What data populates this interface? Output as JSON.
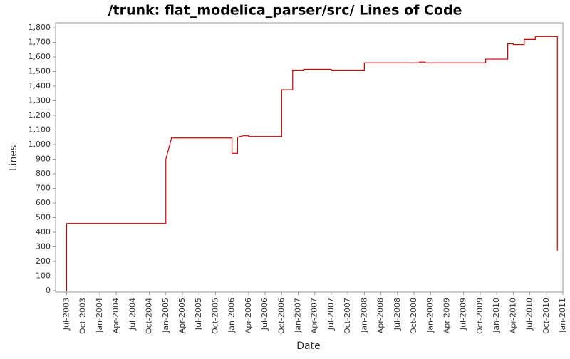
{
  "chart_data": {
    "type": "line",
    "title": "/trunk: flat_modelica_parser/src/ Lines of Code",
    "x_label": "Date",
    "y_label": "Lines",
    "x": [
      "2003-07",
      "2003-07",
      "2005-01",
      "2005-01",
      "2005-02",
      "2005-02",
      "2006-01",
      "2006-01",
      "2006-02",
      "2006-02",
      "2006-03",
      "2006-04",
      "2006-04",
      "2006-10",
      "2006-10",
      "2006-12",
      "2006-12",
      "2007-02",
      "2007-02",
      "2007-07",
      "2007-07",
      "2008-01",
      "2008-01",
      "2008-11",
      "2008-11",
      "2008-12",
      "2008-12",
      "2009-11",
      "2009-11",
      "2010-03",
      "2010-03",
      "2010-04",
      "2010-04",
      "2010-06",
      "2010-06",
      "2010-08",
      "2010-08",
      "2010-12",
      "2010-12"
    ],
    "series": [
      {
        "name": "Lines",
        "color": "#cc0000",
        "values": [
          0,
          460,
          460,
          900,
          1040,
          1045,
          1045,
          940,
          940,
          1050,
          1060,
          1060,
          1055,
          1055,
          1375,
          1375,
          1510,
          1510,
          1515,
          1515,
          1510,
          1510,
          1560,
          1560,
          1565,
          1565,
          1560,
          1560,
          1585,
          1585,
          1690,
          1690,
          1685,
          1685,
          1720,
          1720,
          1740,
          1740,
          275
        ]
      }
    ],
    "xlim": [
      "2003-05",
      "2011-01"
    ],
    "xticks": [
      {
        "value": "2003-07",
        "label": "Jul-2003"
      },
      {
        "value": "2003-10",
        "label": "Oct-2003"
      },
      {
        "value": "2004-01",
        "label": "Jan-2004"
      },
      {
        "value": "2004-04",
        "label": "Apr-2004"
      },
      {
        "value": "2004-07",
        "label": "Jul-2004"
      },
      {
        "value": "2004-10",
        "label": "Oct-2004"
      },
      {
        "value": "2005-01",
        "label": "Jan-2005"
      },
      {
        "value": "2005-04",
        "label": "Apr-2005"
      },
      {
        "value": "2005-07",
        "label": "Jul-2005"
      },
      {
        "value": "2005-10",
        "label": "Oct-2005"
      },
      {
        "value": "2006-01",
        "label": "Jan-2006"
      },
      {
        "value": "2006-04",
        "label": "Apr-2006"
      },
      {
        "value": "2006-07",
        "label": "Jul-2006"
      },
      {
        "value": "2006-10",
        "label": "Oct-2006"
      },
      {
        "value": "2007-01",
        "label": "Jan-2007"
      },
      {
        "value": "2007-04",
        "label": "Apr-2007"
      },
      {
        "value": "2007-07",
        "label": "Jul-2007"
      },
      {
        "value": "2007-10",
        "label": "Oct-2007"
      },
      {
        "value": "2008-01",
        "label": "Jan-2008"
      },
      {
        "value": "2008-04",
        "label": "Apr-2008"
      },
      {
        "value": "2008-07",
        "label": "Jul-2008"
      },
      {
        "value": "2008-10",
        "label": "Oct-2008"
      },
      {
        "value": "2009-01",
        "label": "Jan-2009"
      },
      {
        "value": "2009-04",
        "label": "Apr-2009"
      },
      {
        "value": "2009-07",
        "label": "Jul-2009"
      },
      {
        "value": "2009-10",
        "label": "Oct-2009"
      },
      {
        "value": "2010-01",
        "label": "Jan-2010"
      },
      {
        "value": "2010-04",
        "label": "Apr-2010"
      },
      {
        "value": "2010-07",
        "label": "Jul-2010"
      },
      {
        "value": "2010-10",
        "label": "Oct-2010"
      },
      {
        "value": "2011-01",
        "label": "Jan-2011"
      }
    ],
    "ylim": [
      0,
      1800
    ],
    "yticks": [
      0,
      100,
      200,
      300,
      400,
      500,
      600,
      700,
      800,
      900,
      {
        "value": 1000,
        "label": "1,000"
      },
      {
        "value": 1100,
        "label": "1,100"
      },
      {
        "value": 1200,
        "label": "1,200"
      },
      {
        "value": 1300,
        "label": "1,300"
      },
      {
        "value": 1400,
        "label": "1,400"
      },
      {
        "value": 1500,
        "label": "1,500"
      },
      {
        "value": 1600,
        "label": "1,600"
      },
      {
        "value": 1700,
        "label": "1,700"
      },
      {
        "value": 1800,
        "label": "1,800"
      }
    ],
    "grid": false
  }
}
